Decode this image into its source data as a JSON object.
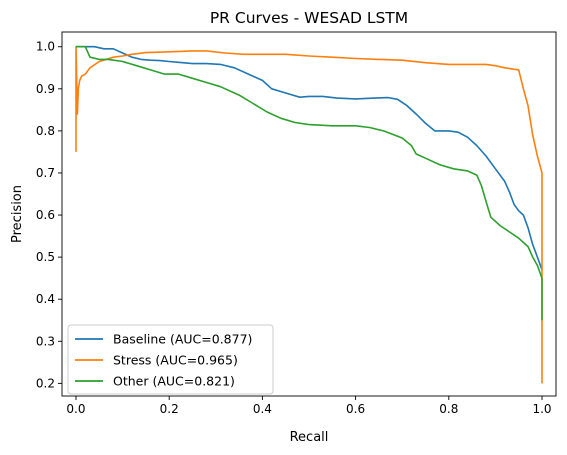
{
  "chart_data": {
    "type": "line",
    "title": "PR Curves - WESAD LSTM",
    "xlabel": "Recall",
    "ylabel": "Precision",
    "xlim": [
      -0.03,
      1.03
    ],
    "ylim": [
      0.17,
      1.035
    ],
    "x_ticks": [
      0.0,
      0.2,
      0.4,
      0.6,
      0.8,
      1.0
    ],
    "y_ticks": [
      0.2,
      0.3,
      0.4,
      0.5,
      0.6,
      0.7,
      0.8,
      0.9,
      1.0
    ],
    "x_tick_labels": [
      "0.0",
      "0.2",
      "0.4",
      "0.6",
      "0.8",
      "1.0"
    ],
    "y_tick_labels": [
      "0.2",
      "0.3",
      "0.4",
      "0.5",
      "0.6",
      "0.7",
      "0.8",
      "0.9",
      "1.0"
    ],
    "grid": false,
    "legend_position": "lower-left",
    "series": [
      {
        "name": "Baseline (AUC=0.877)",
        "color": "#1f77b4",
        "points": [
          [
            0.0,
            1.0
          ],
          [
            0.04,
            1.0
          ],
          [
            0.06,
            0.995
          ],
          [
            0.08,
            0.995
          ],
          [
            0.1,
            0.985
          ],
          [
            0.12,
            0.975
          ],
          [
            0.14,
            0.97
          ],
          [
            0.16,
            0.968
          ],
          [
            0.18,
            0.967
          ],
          [
            0.2,
            0.965
          ],
          [
            0.22,
            0.963
          ],
          [
            0.25,
            0.96
          ],
          [
            0.28,
            0.96
          ],
          [
            0.31,
            0.958
          ],
          [
            0.34,
            0.95
          ],
          [
            0.37,
            0.935
          ],
          [
            0.4,
            0.92
          ],
          [
            0.42,
            0.9
          ],
          [
            0.45,
            0.89
          ],
          [
            0.48,
            0.88
          ],
          [
            0.5,
            0.882
          ],
          [
            0.53,
            0.882
          ],
          [
            0.56,
            0.878
          ],
          [
            0.6,
            0.876
          ],
          [
            0.64,
            0.878
          ],
          [
            0.67,
            0.879
          ],
          [
            0.69,
            0.875
          ],
          [
            0.71,
            0.86
          ],
          [
            0.73,
            0.84
          ],
          [
            0.75,
            0.818
          ],
          [
            0.77,
            0.8
          ],
          [
            0.8,
            0.8
          ],
          [
            0.82,
            0.797
          ],
          [
            0.84,
            0.785
          ],
          [
            0.86,
            0.765
          ],
          [
            0.88,
            0.74
          ],
          [
            0.9,
            0.71
          ],
          [
            0.92,
            0.68
          ],
          [
            0.93,
            0.655
          ],
          [
            0.94,
            0.625
          ],
          [
            0.95,
            0.61
          ],
          [
            0.96,
            0.6
          ],
          [
            0.97,
            0.57
          ],
          [
            0.98,
            0.53
          ],
          [
            0.99,
            0.5
          ],
          [
            1.0,
            0.47
          ]
        ]
      },
      {
        "name": "Stress (AUC=0.965)",
        "color": "#ff7f0e",
        "points": [
          [
            0.0,
            0.75
          ],
          [
            0.0,
            1.0
          ],
          [
            0.003,
            0.84
          ],
          [
            0.005,
            0.9
          ],
          [
            0.008,
            0.92
          ],
          [
            0.012,
            0.93
          ],
          [
            0.02,
            0.935
          ],
          [
            0.03,
            0.95
          ],
          [
            0.05,
            0.965
          ],
          [
            0.08,
            0.975
          ],
          [
            0.1,
            0.978
          ],
          [
            0.12,
            0.982
          ],
          [
            0.15,
            0.986
          ],
          [
            0.2,
            0.988
          ],
          [
            0.25,
            0.99
          ],
          [
            0.28,
            0.99
          ],
          [
            0.32,
            0.985
          ],
          [
            0.36,
            0.982
          ],
          [
            0.4,
            0.982
          ],
          [
            0.45,
            0.982
          ],
          [
            0.5,
            0.978
          ],
          [
            0.55,
            0.975
          ],
          [
            0.6,
            0.972
          ],
          [
            0.65,
            0.97
          ],
          [
            0.7,
            0.968
          ],
          [
            0.75,
            0.962
          ],
          [
            0.8,
            0.958
          ],
          [
            0.85,
            0.958
          ],
          [
            0.88,
            0.958
          ],
          [
            0.9,
            0.955
          ],
          [
            0.92,
            0.95
          ],
          [
            0.95,
            0.945
          ],
          [
            0.96,
            0.9
          ],
          [
            0.97,
            0.86
          ],
          [
            0.98,
            0.79
          ],
          [
            0.99,
            0.74
          ],
          [
            0.995,
            0.72
          ],
          [
            1.0,
            0.7
          ],
          [
            1.0,
            0.4
          ],
          [
            1.0,
            0.2
          ]
        ]
      },
      {
        "name": "Other (AUC=0.821)",
        "color": "#2ca02c",
        "points": [
          [
            0.0,
            1.0
          ],
          [
            0.02,
            1.0
          ],
          [
            0.03,
            0.975
          ],
          [
            0.05,
            0.97
          ],
          [
            0.07,
            0.97
          ],
          [
            0.1,
            0.965
          ],
          [
            0.13,
            0.955
          ],
          [
            0.16,
            0.945
          ],
          [
            0.19,
            0.935
          ],
          [
            0.22,
            0.935
          ],
          [
            0.25,
            0.925
          ],
          [
            0.28,
            0.915
          ],
          [
            0.31,
            0.905
          ],
          [
            0.35,
            0.885
          ],
          [
            0.38,
            0.865
          ],
          [
            0.41,
            0.845
          ],
          [
            0.44,
            0.83
          ],
          [
            0.47,
            0.82
          ],
          [
            0.5,
            0.815
          ],
          [
            0.55,
            0.812
          ],
          [
            0.6,
            0.812
          ],
          [
            0.63,
            0.808
          ],
          [
            0.66,
            0.8
          ],
          [
            0.7,
            0.783
          ],
          [
            0.72,
            0.765
          ],
          [
            0.73,
            0.745
          ],
          [
            0.75,
            0.735
          ],
          [
            0.78,
            0.72
          ],
          [
            0.81,
            0.71
          ],
          [
            0.84,
            0.705
          ],
          [
            0.86,
            0.695
          ],
          [
            0.87,
            0.67
          ],
          [
            0.88,
            0.632
          ],
          [
            0.89,
            0.595
          ],
          [
            0.91,
            0.575
          ],
          [
            0.93,
            0.56
          ],
          [
            0.95,
            0.545
          ],
          [
            0.97,
            0.525
          ],
          [
            0.98,
            0.5
          ],
          [
            0.99,
            0.48
          ],
          [
            1.0,
            0.45
          ],
          [
            1.0,
            0.35
          ]
        ]
      }
    ]
  }
}
